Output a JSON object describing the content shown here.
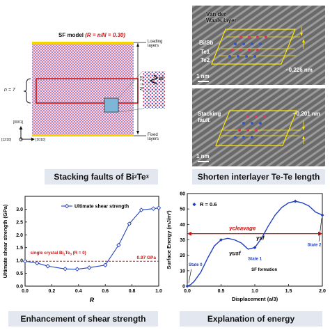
{
  "sf_model": {
    "title_prefix": "SF model",
    "title_eq": "(R = n/N = 0.30)",
    "loading_layers": "Loading layers",
    "fixed_layers": "Fixed layers",
    "n_label": "n = 7",
    "N_label": "N = 23",
    "sf_label": "SF",
    "axis_0001": "[0001]",
    "axis_1210": "[1210]",
    "axis_1010": "[1010]"
  },
  "captions": {
    "top_left_main": "Stacking faults of Bi",
    "top_left_sub1": "2",
    "top_left_mid": "Te",
    "top_left_sub2": "3",
    "top_right": "Shorten interlayer Te-Te length",
    "bottom_left": "Enhancement of shear strength",
    "bottom_right": "Explanation of energy"
  },
  "tem_top": {
    "vdw_label_1": "Van der",
    "vdw_label_2": "Waals layer",
    "bisb": "Bi/Sb",
    "te1": "Te1",
    "te2": "Te2",
    "distance": "~0.226 nm",
    "scale": "1 nm"
  },
  "tem_bottom": {
    "fault_label_1": "Stacking",
    "fault_label_2": "fault",
    "distance": "~0.201 nm",
    "scale": "1 nm"
  },
  "colors": {
    "accent_blue": "#1f3fbf",
    "accent_red": "#cc1111",
    "caption_bg": "#e3e8f0",
    "highlight_yellow": "#ffe600"
  },
  "chart_data": [
    {
      "type": "line",
      "title": "",
      "xlabel": "R",
      "ylabel": "Ultimate shear strength (GPa)",
      "xlim": [
        0.0,
        1.0
      ],
      "ylim": [
        0.0,
        3.5
      ],
      "xticks": [
        "0.0",
        "0.2",
        "0.4",
        "0.6",
        "0.8",
        "1.0"
      ],
      "yticks": [
        "0.0",
        "0.5",
        "1.0",
        "1.5",
        "2.0",
        "2.5",
        "3.0"
      ],
      "legend": "top-center",
      "series": [
        {
          "name": "Ultimate shear strength",
          "x": [
            0.0,
            0.09,
            0.17,
            0.3,
            0.39,
            0.48,
            0.6,
            0.7,
            0.78,
            0.87,
            0.96,
            1.0
          ],
          "y": [
            0.97,
            0.9,
            0.78,
            0.67,
            0.66,
            0.72,
            0.82,
            1.6,
            2.43,
            2.97,
            3.02,
            3.05
          ]
        }
      ],
      "reference_line": {
        "y": 0.97,
        "label": "0.97 GPa"
      },
      "annotation_prefix": "single crystal Bi",
      "annotation_sub": "2",
      "annotation_mid": "Te",
      "annotation_sub2": "3",
      "annotation_suffix": " (R = 0)"
    },
    {
      "type": "line",
      "title": "",
      "xlabel": "Displacement (a/3)",
      "ylabel": "Surface Energy (mJ/m²)",
      "xlim": [
        0.0,
        2.0
      ],
      "ylim": [
        0,
        60
      ],
      "xticks": [
        "0.0",
        "0.5",
        "1.0",
        "1.5",
        "2.0"
      ],
      "yticks": [
        "0",
        "10",
        "20",
        "30",
        "40",
        "50",
        "60"
      ],
      "legend": "top-left",
      "series": [
        {
          "name": "R = 0.6",
          "x": [
            0.0,
            0.05,
            0.1,
            0.2,
            0.3,
            0.4,
            0.5,
            0.6,
            0.7,
            0.8,
            0.9,
            1.0,
            1.1,
            1.2,
            1.3,
            1.4,
            1.5,
            1.6,
            1.7,
            1.8,
            1.9,
            2.0
          ],
          "y": [
            0,
            1,
            3,
            9,
            18,
            26,
            30,
            31,
            30,
            28,
            24,
            25,
            31,
            39,
            46,
            51,
            54,
            55,
            54,
            52,
            48,
            46
          ]
        }
      ],
      "reference_line": {
        "y": 34,
        "label": "γcleavage"
      },
      "annotations": {
        "gamma_usf": "γusf",
        "gamma_sf": "γsf",
        "state0": "State 0",
        "state1": "State 1",
        "state2": "State 2",
        "sf_formation": "SF formation"
      }
    }
  ]
}
